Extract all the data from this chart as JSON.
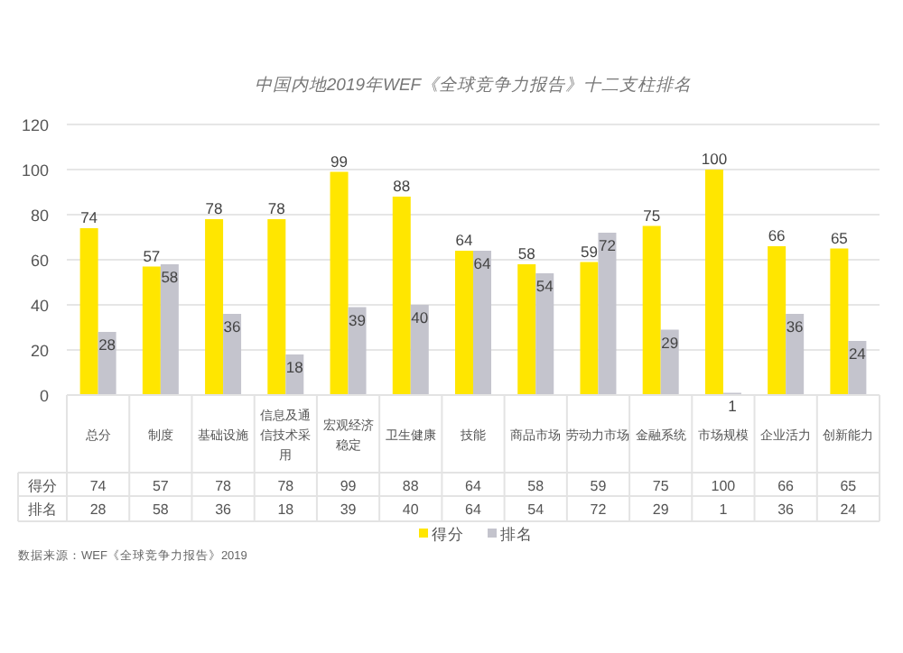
{
  "chart_data": {
    "type": "bar",
    "title": "中国内地2019年WEF《全球竞争力报告》十二支柱排名",
    "categories": [
      "总分",
      "制度",
      "基础设施",
      "信息及通信技术采用",
      "宏观经济稳定",
      "卫生健康",
      "技能",
      "商品市场",
      "劳动力市场",
      "金融系统",
      "市场规模",
      "企业活力",
      "创新能力"
    ],
    "series": [
      {
        "name": "得分",
        "color": "#ffe600",
        "values": [
          74,
          57,
          78,
          78,
          99,
          88,
          64,
          58,
          59,
          75,
          100,
          66,
          65
        ],
        "value_labels": [
          "74",
          "57",
          "78",
          "78",
          "99",
          "88",
          "64",
          "58",
          "59",
          "75",
          "100",
          "66",
          "65"
        ]
      },
      {
        "name": "排名",
        "color": "#c4c4cd",
        "values": [
          28,
          58,
          36,
          18,
          39,
          40,
          64,
          54,
          72,
          29,
          1,
          36,
          24
        ],
        "value_labels": [
          "28",
          "58",
          "36",
          "18",
          "39",
          "40",
          "64",
          "54",
          "72",
          "29",
          "1",
          "36",
          "24"
        ]
      }
    ],
    "ylim": [
      0,
      120
    ],
    "yticks": [
      0,
      20,
      40,
      60,
      80,
      100,
      120
    ],
    "grid": "y",
    "data_labels": true,
    "legend": "bottom",
    "annotations": [
      "数据来源：WEF《全球竞争力报告》2019"
    ]
  }
}
